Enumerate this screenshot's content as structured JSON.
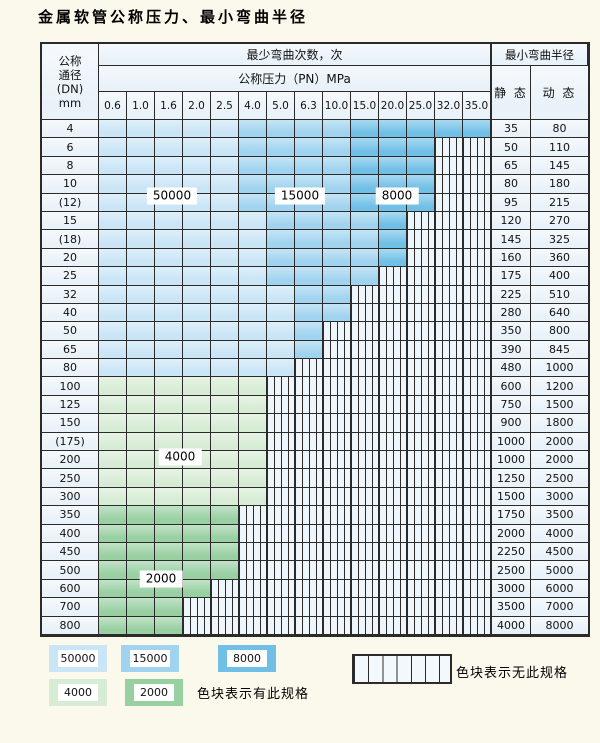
{
  "title": "金属软管公称压力、最小弯曲半径",
  "chart_data": {
    "type": "table",
    "header": {
      "dn_label_lines": [
        "公称",
        "通径",
        "(DN)",
        "mm"
      ],
      "cycles_label": "最少弯曲次数，次",
      "pressure_label": "公称压力（PN）MPa",
      "radius_label": "最小弯曲半径",
      "static_label": "静 态",
      "dynamic_label": "动 态"
    },
    "pressure_columns": [
      "0.6",
      "1.0",
      "1.6",
      "2.0",
      "2.5",
      "4.0",
      "5.0",
      "6.3",
      "10.0",
      "15.0",
      "20.0",
      "25.0",
      "32.0",
      "35.0"
    ],
    "cell_code_meaning": {
      "L": "50000次弯曲",
      "M": "15000次弯曲",
      "D": "8000次弯曲",
      "G": "4000次弯曲",
      "g": "2000次弯曲",
      "x": "无此规格"
    },
    "rows": [
      {
        "dn": "4",
        "static": "35",
        "dynamic": "80",
        "cells": "LLLLLMMMMDDDDD"
      },
      {
        "dn": "6",
        "static": "50",
        "dynamic": "110",
        "cells": "LLLLLMMMMDDDxx"
      },
      {
        "dn": "8",
        "static": "65",
        "dynamic": "145",
        "cells": "LLLLLMMMMDDDxx"
      },
      {
        "dn": "10",
        "static": "80",
        "dynamic": "180",
        "cells": "LLLLLMMMMDDDxx"
      },
      {
        "dn": "(12)",
        "static": "95",
        "dynamic": "215",
        "cells": "LLLLLMMMMDDDxx"
      },
      {
        "dn": "15",
        "static": "120",
        "dynamic": "270",
        "cells": "LLLLLLMMMMDxxx"
      },
      {
        "dn": "(18)",
        "static": "145",
        "dynamic": "325",
        "cells": "LLLLLLMMMMDxxx"
      },
      {
        "dn": "20",
        "static": "160",
        "dynamic": "360",
        "cells": "LLLLLLMMMMDxxx"
      },
      {
        "dn": "25",
        "static": "175",
        "dynamic": "400",
        "cells": "LLLLLLMMMMxxxx"
      },
      {
        "dn": "32",
        "static": "225",
        "dynamic": "510",
        "cells": "LLLLLLLMMxxxxx"
      },
      {
        "dn": "40",
        "static": "280",
        "dynamic": "640",
        "cells": "LLLLLLLMMxxxxx"
      },
      {
        "dn": "50",
        "static": "350",
        "dynamic": "800",
        "cells": "LLLLLLLMxxxxxx"
      },
      {
        "dn": "65",
        "static": "390",
        "dynamic": "845",
        "cells": "LLLLLLLMxxxxxx"
      },
      {
        "dn": "80",
        "static": "480",
        "dynamic": "1000",
        "cells": "LLLLLLLxxxxxxx"
      },
      {
        "dn": "100",
        "static": "600",
        "dynamic": "1200",
        "cells": "GGGGGGxxxxxxxx"
      },
      {
        "dn": "125",
        "static": "750",
        "dynamic": "1500",
        "cells": "GGGGGGxxxxxxxx"
      },
      {
        "dn": "150",
        "static": "900",
        "dynamic": "1800",
        "cells": "GGGGGGxxxxxxxx"
      },
      {
        "dn": "(175)",
        "static": "1000",
        "dynamic": "2000",
        "cells": "GGGGGGxxxxxxxx"
      },
      {
        "dn": "200",
        "static": "1000",
        "dynamic": "2000",
        "cells": "GGGGGGxxxxxxxx"
      },
      {
        "dn": "250",
        "static": "1250",
        "dynamic": "2500",
        "cells": "GGGGGGxxxxxxxx"
      },
      {
        "dn": "300",
        "static": "1500",
        "dynamic": "3000",
        "cells": "GGGGGGxxxxxxxx"
      },
      {
        "dn": "350",
        "static": "1750",
        "dynamic": "3500",
        "cells": "gggggxxxxxxxxx"
      },
      {
        "dn": "400",
        "static": "2000",
        "dynamic": "4000",
        "cells": "gggggxxxxxxxxx"
      },
      {
        "dn": "450",
        "static": "2250",
        "dynamic": "4500",
        "cells": "gggggxxxxxxxxx"
      },
      {
        "dn": "500",
        "static": "2500",
        "dynamic": "5000",
        "cells": "gggggxxxxxxxxx"
      },
      {
        "dn": "600",
        "static": "3000",
        "dynamic": "6000",
        "cells": "ggggxxxxxxxxxx"
      },
      {
        "dn": "700",
        "static": "3500",
        "dynamic": "7000",
        "cells": "gggxxxxxxxxxxx"
      },
      {
        "dn": "800",
        "static": "4000",
        "dynamic": "8000",
        "cells": "gggxxxxxxxxxxx"
      }
    ],
    "region_labels": [
      "50000",
      "15000",
      "8000",
      "4000",
      "2000"
    ]
  },
  "legend": {
    "available": [
      {
        "value": "50000",
        "type": "c50000"
      },
      {
        "value": "15000",
        "type": "c15000"
      },
      {
        "value": "8000",
        "type": "c8000"
      },
      {
        "value": "4000",
        "type": "c4000"
      },
      {
        "value": "2000",
        "type": "c2000"
      }
    ],
    "available_note": "色块表示有此规格",
    "unavailable_note": "色块表示无此规格"
  },
  "colors": {
    "c50000": "#c9e5f6",
    "c15000": "#9fd3ef",
    "c8000": "#70bfe7",
    "c4000": "#d7ecd5",
    "c2000": "#98d0a2",
    "hatch": "#eef5fb",
    "header_bg": "#e9f2f9",
    "border": "#2b2b2b",
    "page_bg": "#fbf8ec"
  }
}
